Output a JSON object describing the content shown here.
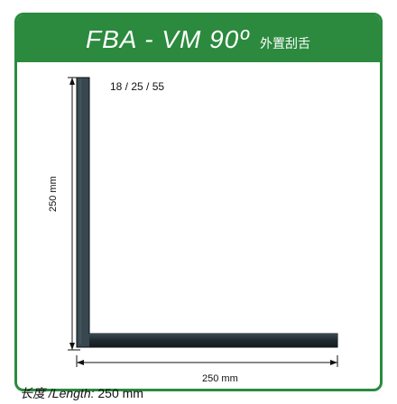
{
  "header": {
    "model": "FBA - VM 90º",
    "subtitle": "外置刮舌"
  },
  "drawing": {
    "spec": "18 / 25 / 55",
    "height_dim": "250 mm",
    "width_dim": "250 mm"
  },
  "footer": {
    "length_label": "长度 /Length:",
    "length_value": "250 mm"
  },
  "colors": {
    "header_green": "#2b8a3e",
    "profile_dark": "#1f2a30"
  }
}
